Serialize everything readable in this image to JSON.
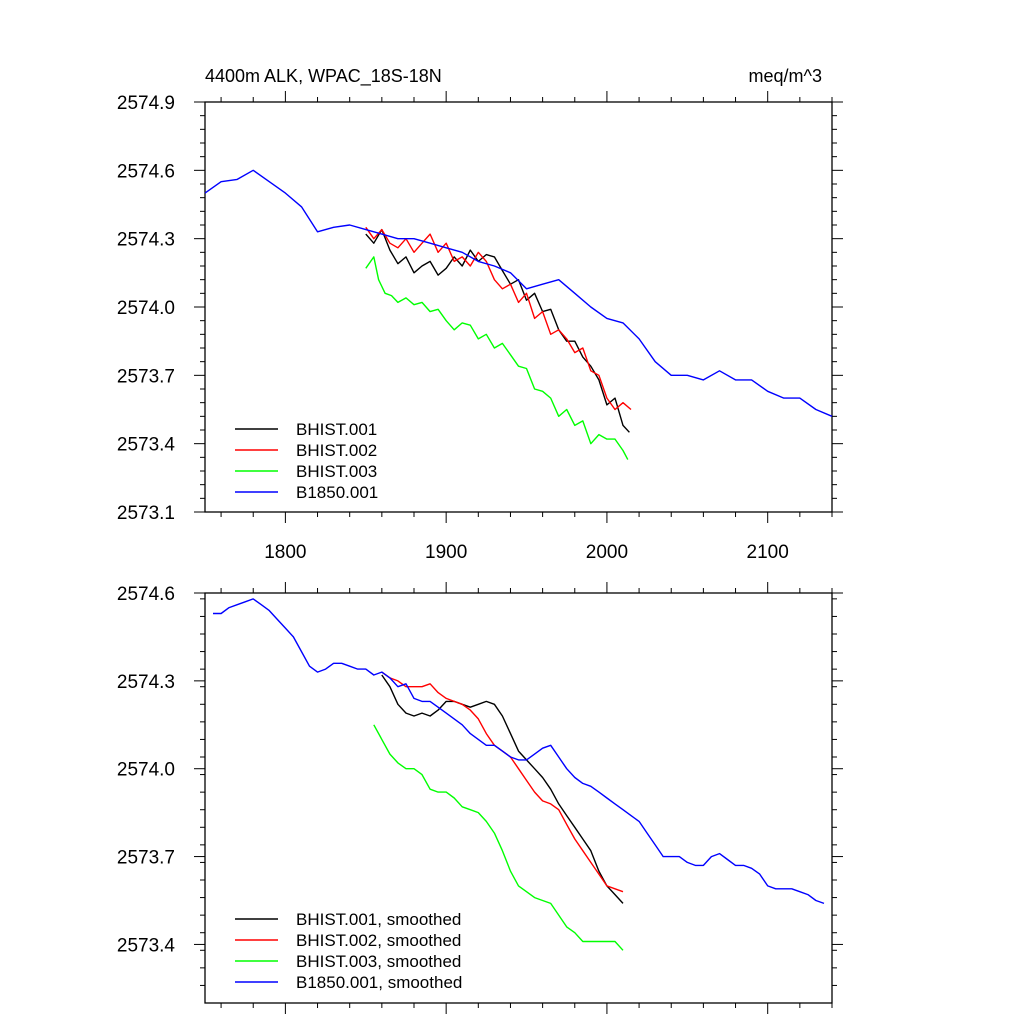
{
  "chart_data": [
    {
      "type": "line",
      "title_left": "4400m ALK, WPAC_18S-18N",
      "title_right": "meq/m^3",
      "xlim": [
        1750,
        2140
      ],
      "ylim": [
        2573.1,
        2574.9
      ],
      "xticks": [
        1800,
        1900,
        2000,
        2100
      ],
      "xtick_labels": [
        "1800",
        "1900",
        "2000",
        "2100"
      ],
      "yticks": [
        2573.1,
        2573.4,
        2573.7,
        2574.0,
        2574.3,
        2574.6,
        2574.9
      ],
      "ytick_labels": [
        "2573.1",
        "2573.4",
        "2573.7",
        "2574.0",
        "2574.3",
        "2574.6",
        "2574.9"
      ],
      "legend_position": "bottom-left",
      "series": [
        {
          "name": "BHIST.001",
          "color": "#000000",
          "x": [
            1850,
            1855,
            1860,
            1865,
            1870,
            1875,
            1880,
            1885,
            1890,
            1895,
            1900,
            1905,
            1910,
            1915,
            1920,
            1925,
            1930,
            1935,
            1940,
            1945,
            1950,
            1955,
            1960,
            1965,
            1970,
            1975,
            1980,
            1985,
            1990,
            1995,
            2000,
            2005,
            2010,
            2014
          ],
          "y": [
            2574.32,
            2574.28,
            2574.34,
            2574.25,
            2574.19,
            2574.22,
            2574.15,
            2574.18,
            2574.2,
            2574.14,
            2574.17,
            2574.22,
            2574.18,
            2574.25,
            2574.2,
            2574.23,
            2574.22,
            2574.16,
            2574.1,
            2574.12,
            2574.03,
            2574.06,
            2573.98,
            2573.99,
            2573.9,
            2573.85,
            2573.85,
            2573.78,
            2573.74,
            2573.68,
            2573.57,
            2573.6,
            2573.48,
            2573.45
          ]
        },
        {
          "name": "BHIST.002",
          "color": "#ff0000",
          "x": [
            1850,
            1855,
            1860,
            1865,
            1870,
            1875,
            1880,
            1885,
            1890,
            1895,
            1900,
            1905,
            1910,
            1915,
            1920,
            1925,
            1930,
            1935,
            1940,
            1945,
            1950,
            1955,
            1960,
            1965,
            1970,
            1975,
            1980,
            1985,
            1990,
            1995,
            2000,
            2005,
            2010,
            2015
          ],
          "y": [
            2574.35,
            2574.3,
            2574.34,
            2574.28,
            2574.26,
            2574.3,
            2574.24,
            2574.28,
            2574.32,
            2574.24,
            2574.28,
            2574.2,
            2574.22,
            2574.18,
            2574.24,
            2574.2,
            2574.12,
            2574.08,
            2574.1,
            2574.02,
            2574.06,
            2573.95,
            2573.98,
            2573.88,
            2573.9,
            2573.86,
            2573.8,
            2573.82,
            2573.72,
            2573.7,
            2573.6,
            2573.55,
            2573.58,
            2573.55
          ]
        },
        {
          "name": "BHIST.003",
          "color": "#00ff00",
          "x": [
            1850,
            1855,
            1858,
            1862,
            1866,
            1870,
            1875,
            1880,
            1885,
            1890,
            1895,
            1900,
            1905,
            1910,
            1915,
            1920,
            1925,
            1930,
            1935,
            1940,
            1945,
            1950,
            1955,
            1960,
            1965,
            1970,
            1975,
            1980,
            1985,
            1990,
            1995,
            2000,
            2005,
            2010,
            2013
          ],
          "y": [
            2574.17,
            2574.22,
            2574.12,
            2574.06,
            2574.05,
            2574.02,
            2574.04,
            2574.01,
            2574.02,
            2573.98,
            2573.99,
            2573.94,
            2573.9,
            2573.93,
            2573.92,
            2573.86,
            2573.88,
            2573.82,
            2573.84,
            2573.79,
            2573.74,
            2573.73,
            2573.64,
            2573.63,
            2573.6,
            2573.52,
            2573.55,
            2573.48,
            2573.5,
            2573.4,
            2573.44,
            2573.42,
            2573.42,
            2573.37,
            2573.33
          ]
        },
        {
          "name": "B1850.001",
          "color": "#0000ff",
          "x": [
            1750,
            1760,
            1770,
            1780,
            1790,
            1800,
            1810,
            1820,
            1830,
            1840,
            1850,
            1860,
            1870,
            1880,
            1890,
            1900,
            1910,
            1920,
            1930,
            1940,
            1950,
            1960,
            1970,
            1980,
            1990,
            2000,
            2010,
            2020,
            2030,
            2040,
            2050,
            2060,
            2070,
            2080,
            2090,
            2100,
            2110,
            2120,
            2130,
            2140
          ],
          "y": [
            2574.5,
            2574.55,
            2574.56,
            2574.6,
            2574.55,
            2574.5,
            2574.44,
            2574.33,
            2574.35,
            2574.36,
            2574.34,
            2574.32,
            2574.3,
            2574.3,
            2574.28,
            2574.26,
            2574.24,
            2574.2,
            2574.18,
            2574.15,
            2574.08,
            2574.1,
            2574.12,
            2574.06,
            2574.0,
            2573.95,
            2573.93,
            2573.86,
            2573.76,
            2573.7,
            2573.7,
            2573.68,
            2573.72,
            2573.68,
            2573.68,
            2573.63,
            2573.6,
            2573.6,
            2573.55,
            2573.52
          ]
        }
      ]
    },
    {
      "type": "line",
      "xlim": [
        1750,
        2140
      ],
      "ylim": [
        2573.2,
        2574.6
      ],
      "xticks": [
        1800,
        1900,
        2000,
        2100
      ],
      "yticks": [
        2573.4,
        2573.7,
        2574.0,
        2574.3,
        2574.6
      ],
      "ytick_labels": [
        "2573.4",
        "2573.7",
        "2574.0",
        "2574.3",
        "2574.6"
      ],
      "legend_position": "bottom-left",
      "series": [
        {
          "name": "BHIST.001, smoothed",
          "color": "#000000",
          "x": [
            1860,
            1865,
            1870,
            1875,
            1880,
            1885,
            1890,
            1895,
            1900,
            1905,
            1910,
            1915,
            1920,
            1925,
            1930,
            1935,
            1940,
            1945,
            1950,
            1955,
            1960,
            1965,
            1970,
            1975,
            1980,
            1985,
            1990,
            1995,
            2000,
            2005,
            2010
          ],
          "y": [
            2574.32,
            2574.28,
            2574.22,
            2574.19,
            2574.18,
            2574.19,
            2574.18,
            2574.2,
            2574.23,
            2574.23,
            2574.22,
            2574.21,
            2574.22,
            2574.23,
            2574.22,
            2574.18,
            2574.12,
            2574.06,
            2574.03,
            2574.0,
            2573.97,
            2573.93,
            2573.88,
            2573.84,
            2573.8,
            2573.76,
            2573.72,
            2573.65,
            2573.6,
            2573.57,
            2573.54
          ]
        },
        {
          "name": "BHIST.002, smoothed",
          "color": "#ff0000",
          "x": [
            1860,
            1865,
            1870,
            1875,
            1880,
            1885,
            1890,
            1895,
            1900,
            1905,
            1910,
            1915,
            1920,
            1925,
            1930,
            1935,
            1940,
            1945,
            1950,
            1955,
            1960,
            1965,
            1970,
            1975,
            1980,
            1985,
            1990,
            1995,
            2000,
            2005,
            2010
          ],
          "y": [
            2574.33,
            2574.31,
            2574.3,
            2574.28,
            2574.28,
            2574.28,
            2574.29,
            2574.26,
            2574.24,
            2574.23,
            2574.22,
            2574.2,
            2574.17,
            2574.12,
            2574.08,
            2574.06,
            2574.04,
            2574.0,
            2573.96,
            2573.92,
            2573.89,
            2573.88,
            2573.86,
            2573.81,
            2573.76,
            2573.72,
            2573.68,
            2573.64,
            2573.6,
            2573.59,
            2573.58
          ]
        },
        {
          "name": "BHIST.003, smoothed",
          "color": "#00ff00",
          "x": [
            1855,
            1860,
            1865,
            1870,
            1875,
            1880,
            1885,
            1890,
            1895,
            1900,
            1905,
            1910,
            1915,
            1920,
            1925,
            1930,
            1935,
            1940,
            1945,
            1950,
            1955,
            1960,
            1965,
            1970,
            1975,
            1980,
            1985,
            1990,
            1995,
            2000,
            2005,
            2010
          ],
          "y": [
            2574.15,
            2574.1,
            2574.05,
            2574.02,
            2574.0,
            2574.0,
            2573.98,
            2573.93,
            2573.92,
            2573.92,
            2573.9,
            2573.87,
            2573.86,
            2573.85,
            2573.82,
            2573.78,
            2573.72,
            2573.65,
            2573.6,
            2573.58,
            2573.56,
            2573.55,
            2573.54,
            2573.5,
            2573.46,
            2573.44,
            2573.41,
            2573.41,
            2573.41,
            2573.41,
            2573.41,
            2573.38
          ]
        },
        {
          "name": "B1850.001, smoothed",
          "color": "#0000ff",
          "x": [
            1755,
            1760,
            1765,
            1770,
            1775,
            1780,
            1785,
            1790,
            1795,
            1800,
            1805,
            1810,
            1815,
            1820,
            1825,
            1830,
            1835,
            1840,
            1845,
            1850,
            1855,
            1860,
            1865,
            1870,
            1875,
            1880,
            1885,
            1890,
            1895,
            1900,
            1905,
            1910,
            1915,
            1920,
            1925,
            1930,
            1935,
            1940,
            1945,
            1950,
            1955,
            1960,
            1965,
            1970,
            1975,
            1980,
            1985,
            1990,
            1995,
            2000,
            2005,
            2010,
            2015,
            2020,
            2025,
            2030,
            2035,
            2040,
            2045,
            2050,
            2055,
            2060,
            2065,
            2070,
            2075,
            2080,
            2085,
            2090,
            2095,
            2100,
            2105,
            2110,
            2115,
            2120,
            2125,
            2130,
            2135
          ],
          "y": [
            2574.53,
            2574.53,
            2574.55,
            2574.56,
            2574.57,
            2574.58,
            2574.56,
            2574.54,
            2574.51,
            2574.48,
            2574.45,
            2574.4,
            2574.35,
            2574.33,
            2574.34,
            2574.36,
            2574.36,
            2574.35,
            2574.34,
            2574.34,
            2574.32,
            2574.33,
            2574.31,
            2574.28,
            2574.29,
            2574.24,
            2574.23,
            2574.23,
            2574.21,
            2574.19,
            2574.17,
            2574.15,
            2574.12,
            2574.1,
            2574.08,
            2574.08,
            2574.06,
            2574.04,
            2574.03,
            2574.03,
            2574.05,
            2574.07,
            2574.08,
            2574.04,
            2574.0,
            2573.97,
            2573.95,
            2573.94,
            2573.92,
            2573.9,
            2573.88,
            2573.86,
            2573.84,
            2573.82,
            2573.78,
            2573.74,
            2573.7,
            2573.7,
            2573.7,
            2573.68,
            2573.67,
            2573.67,
            2573.7,
            2573.71,
            2573.69,
            2573.67,
            2573.67,
            2573.66,
            2573.64,
            2573.6,
            2573.59,
            2573.59,
            2573.59,
            2573.58,
            2573.57,
            2573.55,
            2573.54
          ]
        }
      ]
    }
  ]
}
